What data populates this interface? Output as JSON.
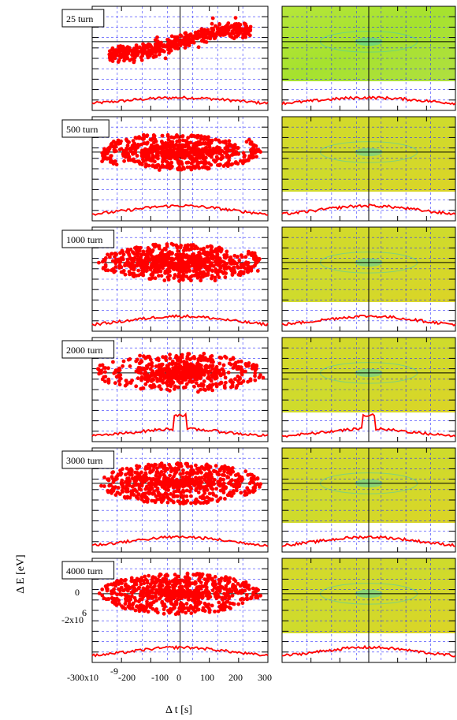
{
  "figure": {
    "left_axis_label": "Δ E [eV]",
    "bottom_axis_label": "Δ t [s]",
    "x_tick_labels": [
      "-300x10",
      "-9",
      "-200",
      "-100",
      "0",
      "100",
      "200",
      "300"
    ],
    "y_tick_labels": [
      "0",
      "-2x10",
      "6"
    ]
  },
  "chart_data": [
    {
      "type": "scatter",
      "panel_label": "25 turn",
      "pattern": "bunch",
      "xlim": [
        -300,
        300
      ],
      "xticks": [
        -300,
        -200,
        -100,
        0,
        100,
        200,
        300
      ]
    },
    {
      "type": "scatter",
      "panel_label": "500 turn",
      "pattern": "spiral1",
      "xlim": [
        -300,
        300
      ]
    },
    {
      "type": "scatter",
      "panel_label": "1000 turn",
      "pattern": "spiral2",
      "xlim": [
        -300,
        300
      ]
    },
    {
      "type": "scatter",
      "panel_label": "2000 turn",
      "pattern": "rings",
      "xlim": [
        -300,
        300
      ]
    },
    {
      "type": "scatter",
      "panel_label": "3000 turn",
      "pattern": "filled",
      "xlim": [
        -300,
        300
      ]
    },
    {
      "type": "scatter",
      "panel_label": "4000 turn",
      "pattern": "filled2",
      "xlim": [
        -300,
        300
      ],
      "yticks": [
        0,
        -2000000
      ]
    }
  ],
  "colors": {
    "points": "#ff0000",
    "profile": "#ff0000",
    "grid": "#3333ff",
    "map_green": "#a6e22e",
    "map_yellow": "#d9d626",
    "map_cyan": "#33cccc"
  }
}
